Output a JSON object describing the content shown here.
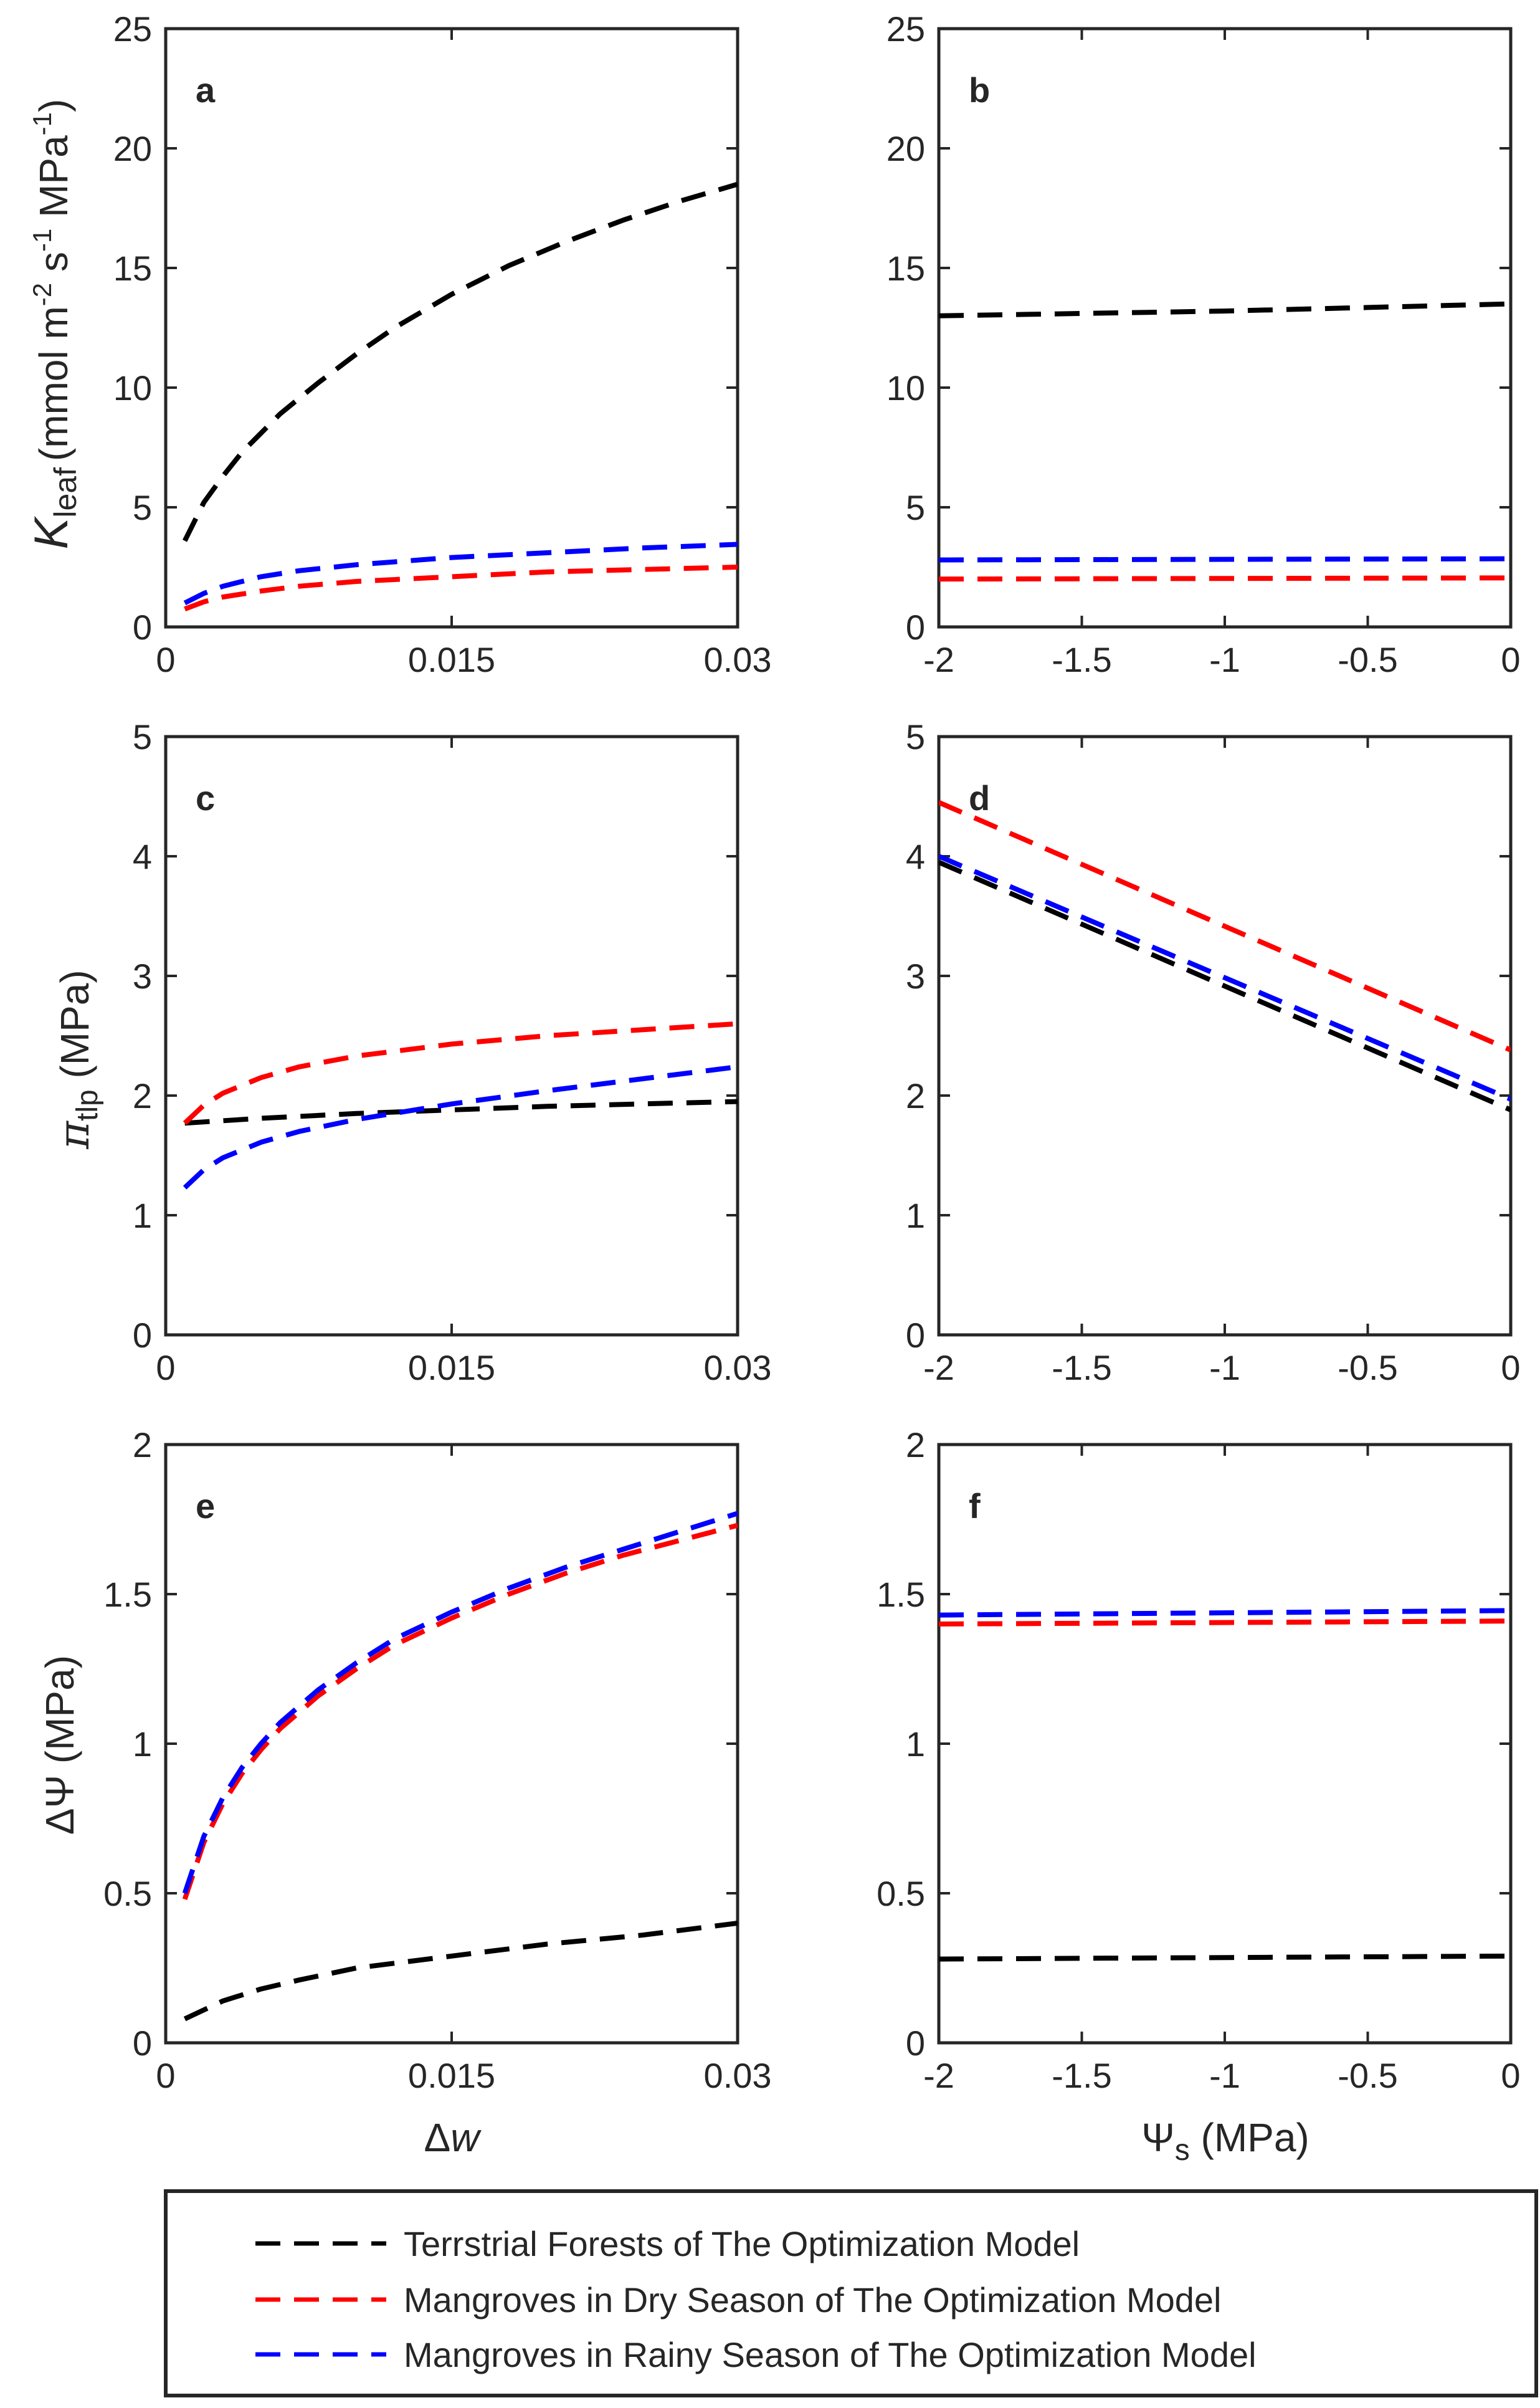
{
  "colors": {
    "terrestrial": "#000000",
    "dry": "#ff0000",
    "rainy": "#0000ff",
    "axis": "#262626"
  },
  "axis_labels": {
    "kleaf_main": "K",
    "kleaf_sub": "leaf",
    "kleaf_units_pre": "(mmol m",
    "kleaf_sup1": "-2",
    "kleaf_s": " s",
    "kleaf_sup2": "-1",
    "kleaf_mpa": " MPa",
    "kleaf_sup3": "-1",
    "kleaf_close": ")",
    "pi_main": "π",
    "pi_sub": "tlp",
    "pi_units": " (MPa)",
    "dpsi": "ΔΨ (MPa)",
    "dw_main": "Δ",
    "dw_var": "w",
    "psis_main": "Ψ",
    "psis_sub": "s",
    "psis_units": " (MPa)"
  },
  "legend": [
    {
      "key": "terrestrial",
      "label": "Terrstrial Forests of The Optimization Model"
    },
    {
      "key": "dry",
      "label": "Mangroves in Dry Season of The Optimization Model"
    },
    {
      "key": "rainy",
      "label": "Mangroves in Rainy Season of The Optimization Model"
    }
  ],
  "chart_data": [
    {
      "panel": "a",
      "type": "line",
      "xlim": [
        0,
        0.03
      ],
      "ylim": [
        0,
        25
      ],
      "xticks": [
        0,
        0.015,
        0.03
      ],
      "xtick_labels": [
        "0",
        "0.015",
        "0.03"
      ],
      "yticks": [
        0,
        5,
        10,
        15,
        20,
        25
      ],
      "ytick_labels": [
        "0",
        "5",
        "10",
        "15",
        "20",
        "25"
      ],
      "show_xlabel": "",
      "ylabel_key": "kleaf",
      "series": [
        {
          "name": "Terrstrial Forests of The Optimization Model",
          "color_key": "terrestrial",
          "x": [
            0.001,
            0.002,
            0.003,
            0.004,
            0.005,
            0.006,
            0.008,
            0.01,
            0.012,
            0.015,
            0.018,
            0.021,
            0.024,
            0.027,
            0.03
          ],
          "y": [
            3.6,
            5.2,
            6.3,
            7.3,
            8.1,
            8.9,
            10.2,
            11.4,
            12.5,
            13.9,
            15.1,
            16.1,
            17.0,
            17.8,
            18.5
          ]
        },
        {
          "name": "Mangroves in Dry Season of The Optimization Model",
          "color_key": "dry",
          "x": [
            0.001,
            0.002,
            0.003,
            0.005,
            0.007,
            0.01,
            0.015,
            0.02,
            0.025,
            0.03
          ],
          "y": [
            0.75,
            1.05,
            1.25,
            1.5,
            1.7,
            1.9,
            2.1,
            2.3,
            2.4,
            2.5
          ]
        },
        {
          "name": "Mangroves in Rainy Season of The Optimization Model",
          "color_key": "rainy",
          "x": [
            0.001,
            0.002,
            0.003,
            0.005,
            0.007,
            0.01,
            0.015,
            0.02,
            0.025,
            0.03
          ],
          "y": [
            1.0,
            1.4,
            1.7,
            2.1,
            2.35,
            2.6,
            2.9,
            3.1,
            3.3,
            3.45
          ]
        }
      ]
    },
    {
      "panel": "b",
      "type": "line",
      "xlim": [
        -2,
        0
      ],
      "ylim": [
        0,
        25
      ],
      "xticks": [
        -2,
        -1.5,
        -1,
        -0.5,
        0
      ],
      "xtick_labels": [
        "-2",
        "-1.5",
        "-1",
        "-0.5",
        "0"
      ],
      "yticks": [
        0,
        5,
        10,
        15,
        20,
        25
      ],
      "ytick_labels": [
        "0",
        "5",
        "10",
        "15",
        "20",
        "25"
      ],
      "series": [
        {
          "name": "Terrstrial Forests of The Optimization Model",
          "color_key": "terrestrial",
          "x": [
            -2,
            -1.5,
            -1,
            -0.5,
            0
          ],
          "y": [
            13.0,
            13.1,
            13.2,
            13.35,
            13.5
          ]
        },
        {
          "name": "Mangroves in Dry Season of The Optimization Model",
          "color_key": "dry",
          "x": [
            -2,
            0
          ],
          "y": [
            2.0,
            2.05
          ]
        },
        {
          "name": "Mangroves in Rainy Season of The Optimization Model",
          "color_key": "rainy",
          "x": [
            -2,
            0
          ],
          "y": [
            2.8,
            2.85
          ]
        }
      ]
    },
    {
      "panel": "c",
      "type": "line",
      "xlim": [
        0,
        0.03
      ],
      "ylim": [
        0,
        5
      ],
      "xticks": [
        0,
        0.015,
        0.03
      ],
      "xtick_labels": [
        "0",
        "0.015",
        "0.03"
      ],
      "yticks": [
        0,
        1,
        2,
        3,
        4,
        5
      ],
      "ytick_labels": [
        "0",
        "1",
        "2",
        "3",
        "4",
        "5"
      ],
      "ylabel_key": "pi",
      "series": [
        {
          "name": "Terrstrial Forests of The Optimization Model",
          "color_key": "terrestrial",
          "x": [
            0.001,
            0.005,
            0.01,
            0.015,
            0.02,
            0.025,
            0.03
          ],
          "y": [
            1.77,
            1.81,
            1.85,
            1.88,
            1.91,
            1.93,
            1.95
          ]
        },
        {
          "name": "Mangroves in Dry Season of The Optimization Model",
          "color_key": "dry",
          "x": [
            0.001,
            0.002,
            0.003,
            0.005,
            0.007,
            0.01,
            0.015,
            0.02,
            0.025,
            0.03
          ],
          "y": [
            1.77,
            1.92,
            2.02,
            2.15,
            2.24,
            2.33,
            2.43,
            2.5,
            2.55,
            2.6
          ]
        },
        {
          "name": "Mangroves in Rainy Season of The Optimization Model",
          "color_key": "rainy",
          "x": [
            0.001,
            0.002,
            0.003,
            0.005,
            0.007,
            0.01,
            0.015,
            0.02,
            0.025,
            0.03
          ],
          "y": [
            1.23,
            1.38,
            1.48,
            1.61,
            1.7,
            1.8,
            1.93,
            2.04,
            2.14,
            2.24
          ]
        }
      ]
    },
    {
      "panel": "d",
      "type": "line",
      "xlim": [
        -2,
        0
      ],
      "ylim": [
        0,
        5
      ],
      "xticks": [
        -2,
        -1.5,
        -1,
        -0.5,
        0
      ],
      "xtick_labels": [
        "-2",
        "-1.5",
        "-1",
        "-0.5",
        "0"
      ],
      "yticks": [
        0,
        1,
        2,
        3,
        4,
        5
      ],
      "ytick_labels": [
        "0",
        "1",
        "2",
        "3",
        "4",
        "5"
      ],
      "series": [
        {
          "name": "Terrstrial Forests of The Optimization Model",
          "color_key": "terrestrial",
          "x": [
            -2,
            0
          ],
          "y": [
            3.95,
            1.88
          ]
        },
        {
          "name": "Mangroves in Dry Season of The Optimization Model",
          "color_key": "dry",
          "x": [
            -2,
            0
          ],
          "y": [
            4.45,
            2.38
          ]
        },
        {
          "name": "Mangroves in Rainy Season of The Optimization Model",
          "color_key": "rainy",
          "x": [
            -2,
            0
          ],
          "y": [
            4.0,
            1.97
          ]
        }
      ]
    },
    {
      "panel": "e",
      "type": "line",
      "xlim": [
        0,
        0.03
      ],
      "ylim": [
        0,
        2
      ],
      "xticks": [
        0,
        0.015,
        0.03
      ],
      "xtick_labels": [
        "0",
        "0.015",
        "0.03"
      ],
      "yticks": [
        0,
        0.5,
        1,
        1.5,
        2
      ],
      "ytick_labels": [
        "0",
        "0.5",
        "1",
        "1.5",
        "2"
      ],
      "ylabel_key": "dpsi",
      "xlabel_key": "dw",
      "series": [
        {
          "name": "Terrstrial Forests of The Optimization Model",
          "color_key": "terrestrial",
          "x": [
            0.001,
            0.002,
            0.003,
            0.005,
            0.007,
            0.01,
            0.015,
            0.02,
            0.025,
            0.03
          ],
          "y": [
            0.08,
            0.11,
            0.14,
            0.18,
            0.21,
            0.25,
            0.29,
            0.33,
            0.36,
            0.4
          ]
        },
        {
          "name": "Mangroves in Dry Season of The Optimization Model",
          "color_key": "dry",
          "x": [
            0.001,
            0.002,
            0.003,
            0.004,
            0.005,
            0.006,
            0.008,
            0.01,
            0.012,
            0.015,
            0.018,
            0.021,
            0.024,
            0.027,
            0.03
          ],
          "y": [
            0.48,
            0.67,
            0.8,
            0.9,
            0.98,
            1.05,
            1.16,
            1.25,
            1.33,
            1.42,
            1.5,
            1.57,
            1.63,
            1.68,
            1.73
          ]
        },
        {
          "name": "Mangroves in Rainy Season of The Optimization Model",
          "color_key": "rainy",
          "x": [
            0.001,
            0.002,
            0.003,
            0.004,
            0.005,
            0.006,
            0.008,
            0.01,
            0.012,
            0.015,
            0.018,
            0.021,
            0.024,
            0.027,
            0.03
          ],
          "y": [
            0.5,
            0.69,
            0.82,
            0.92,
            1.0,
            1.07,
            1.18,
            1.27,
            1.35,
            1.44,
            1.52,
            1.59,
            1.65,
            1.71,
            1.77
          ]
        }
      ]
    },
    {
      "panel": "f",
      "type": "line",
      "xlim": [
        -2,
        0
      ],
      "ylim": [
        0,
        2
      ],
      "xticks": [
        -2,
        -1.5,
        -1,
        -0.5,
        0
      ],
      "xtick_labels": [
        "-2",
        "-1.5",
        "-1",
        "-0.5",
        "0"
      ],
      "yticks": [
        0,
        0.5,
        1,
        1.5,
        2
      ],
      "ytick_labels": [
        "0",
        "0.5",
        "1",
        "1.5",
        "2"
      ],
      "xlabel_key": "psis",
      "series": [
        {
          "name": "Terrstrial Forests of The Optimization Model",
          "color_key": "terrestrial",
          "x": [
            -2,
            0
          ],
          "y": [
            0.28,
            0.29
          ]
        },
        {
          "name": "Mangroves in Dry Season of The Optimization Model",
          "color_key": "dry",
          "x": [
            -2,
            0
          ],
          "y": [
            1.4,
            1.41
          ]
        },
        {
          "name": "Mangroves in Rainy Season of The Optimization Model",
          "color_key": "rainy",
          "x": [
            -2,
            0
          ],
          "y": [
            1.43,
            1.445
          ]
        }
      ]
    }
  ]
}
